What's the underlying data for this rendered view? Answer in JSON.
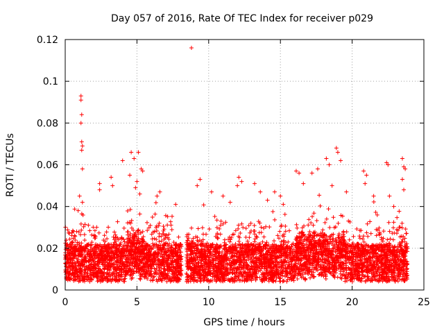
{
  "chart_data": {
    "type": "scatter",
    "title": "Day 057 of 2016, Rate Of TEC Index for receiver p029",
    "xlabel": "GPS time / hours",
    "ylabel": "ROTI / TECUs",
    "xlim": [
      0,
      25
    ],
    "ylim": [
      0,
      0.12
    ],
    "xticks": [
      0,
      5,
      10,
      15,
      20,
      25
    ],
    "xtick_labels": [
      "0",
      "5",
      "10",
      "15",
      "20",
      "25"
    ],
    "yticks": [
      0,
      0.02,
      0.04,
      0.06,
      0.08,
      0.1,
      0.12
    ],
    "ytick_labels": [
      "0",
      "0.02",
      "0.04",
      "0.06",
      "0.08",
      "0.1",
      "0.12"
    ],
    "grid": true,
    "marker": "+",
    "series": [
      {
        "name": "ROTI",
        "color": "#ff0000",
        "description_note": "dense band 0.005-0.03 from 0 to 23.8 h with gap near 8.1-8.4 h; spikes listed",
        "points": [
          [
            1.1,
            0.093
          ],
          [
            1.1,
            0.091
          ],
          [
            1.15,
            0.084
          ],
          [
            1.1,
            0.08
          ],
          [
            1.15,
            0.071
          ],
          [
            1.2,
            0.069
          ],
          [
            1.15,
            0.067
          ],
          [
            1.2,
            0.058
          ],
          [
            1.0,
            0.045
          ],
          [
            1.2,
            0.042
          ],
          [
            0.9,
            0.038
          ],
          [
            8.8,
            0.116
          ],
          [
            4.6,
            0.066
          ],
          [
            4.8,
            0.063
          ],
          [
            5.1,
            0.066
          ],
          [
            5.3,
            0.058
          ],
          [
            5.4,
            0.057
          ],
          [
            5.0,
            0.052
          ],
          [
            4.9,
            0.049
          ],
          [
            5.2,
            0.046
          ],
          [
            4.0,
            0.062
          ],
          [
            4.5,
            0.055
          ],
          [
            3.2,
            0.054
          ],
          [
            3.3,
            0.05
          ],
          [
            2.4,
            0.051
          ],
          [
            2.4,
            0.048
          ],
          [
            6.6,
            0.047
          ],
          [
            6.4,
            0.045
          ],
          [
            7.7,
            0.041
          ],
          [
            9.4,
            0.053
          ],
          [
            9.2,
            0.05
          ],
          [
            10.2,
            0.047
          ],
          [
            11.0,
            0.045
          ],
          [
            11.5,
            0.042
          ],
          [
            12.1,
            0.054
          ],
          [
            12.3,
            0.052
          ],
          [
            12.0,
            0.05
          ],
          [
            13.2,
            0.051
          ],
          [
            13.6,
            0.047
          ],
          [
            14.1,
            0.043
          ],
          [
            14.6,
            0.047
          ],
          [
            15.0,
            0.045
          ],
          [
            15.2,
            0.041
          ],
          [
            16.1,
            0.057
          ],
          [
            16.3,
            0.056
          ],
          [
            16.6,
            0.051
          ],
          [
            17.2,
            0.056
          ],
          [
            17.6,
            0.058
          ],
          [
            18.2,
            0.063
          ],
          [
            18.4,
            0.06
          ],
          [
            18.9,
            0.068
          ],
          [
            19.2,
            0.062
          ],
          [
            19.0,
            0.066
          ],
          [
            18.6,
            0.05
          ],
          [
            19.6,
            0.047
          ],
          [
            20.8,
            0.057
          ],
          [
            21.0,
            0.055
          ],
          [
            20.9,
            0.051
          ],
          [
            21.5,
            0.045
          ],
          [
            22.4,
            0.061
          ],
          [
            22.5,
            0.06
          ],
          [
            22.6,
            0.045
          ],
          [
            22.9,
            0.04
          ],
          [
            23.5,
            0.063
          ],
          [
            23.6,
            0.059
          ],
          [
            23.7,
            0.058
          ],
          [
            23.5,
            0.053
          ],
          [
            23.6,
            0.048
          ]
        ]
      }
    ]
  }
}
